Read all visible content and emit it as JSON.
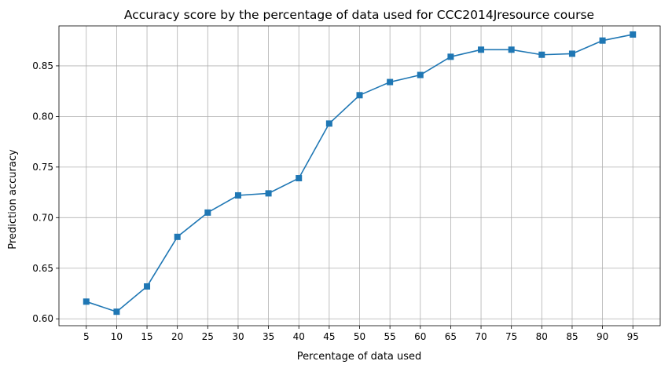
{
  "chart_data": {
    "type": "line",
    "title": "Accuracy score by the percentage of data used for CCC2014Jresource course",
    "xlabel": "Percentage of data used",
    "ylabel": "Prediction accuracy",
    "x": [
      5,
      10,
      15,
      20,
      25,
      30,
      35,
      40,
      45,
      50,
      55,
      60,
      65,
      70,
      75,
      80,
      85,
      90,
      95
    ],
    "xticks": [
      "5",
      "10",
      "15",
      "20",
      "25",
      "30",
      "35",
      "40",
      "45",
      "50",
      "55",
      "60",
      "65",
      "70",
      "75",
      "80",
      "85",
      "90",
      "95"
    ],
    "xlim": [
      0.5,
      99.5
    ],
    "ylim": [
      0.5932,
      0.8895
    ],
    "yticks": [
      0.6,
      0.65,
      0.7,
      0.75,
      0.8,
      0.85
    ],
    "ytick_labels": [
      "0.60",
      "0.65",
      "0.70",
      "0.75",
      "0.80",
      "0.85"
    ],
    "grid": true,
    "series": [
      {
        "values": [
          0.617,
          0.607,
          0.632,
          0.681,
          0.705,
          0.722,
          0.724,
          0.739,
          0.793,
          0.821,
          0.834,
          0.841,
          0.859,
          0.866,
          0.866,
          0.861,
          0.862,
          0.875,
          0.881
        ],
        "color": "#1f77b4",
        "marker": "square"
      }
    ]
  }
}
